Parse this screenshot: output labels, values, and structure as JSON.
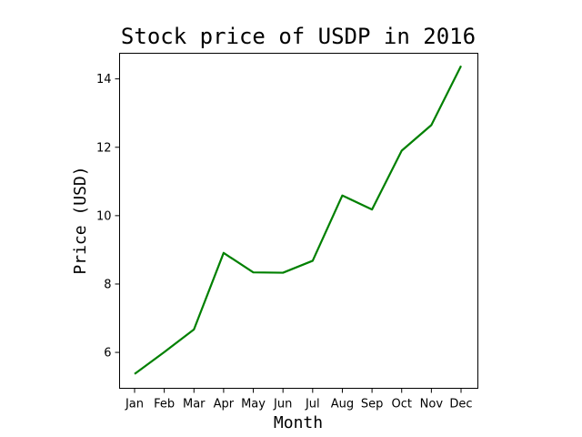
{
  "colors": {
    "line": "#008000",
    "background": "#ffffff",
    "axes": "#000000"
  },
  "chart_data": {
    "type": "line",
    "title": "Stock price of USDP in 2016",
    "xlabel": "Month",
    "ylabel": "Price (USD)",
    "categories": [
      "Jan",
      "Feb",
      "Mar",
      "Apr",
      "May",
      "Jun",
      "Jul",
      "Aug",
      "Sep",
      "Oct",
      "Nov",
      "Dec"
    ],
    "series": [
      {
        "values": [
          5.37,
          6.01,
          6.67,
          8.91,
          8.34,
          8.33,
          8.68,
          10.59,
          10.18,
          11.9,
          12.65,
          14.38
        ]
      }
    ],
    "ylim": [
      4.95,
      14.75
    ],
    "yticks": [
      6,
      8,
      10,
      12,
      14
    ],
    "grid": false,
    "legend": "none"
  }
}
